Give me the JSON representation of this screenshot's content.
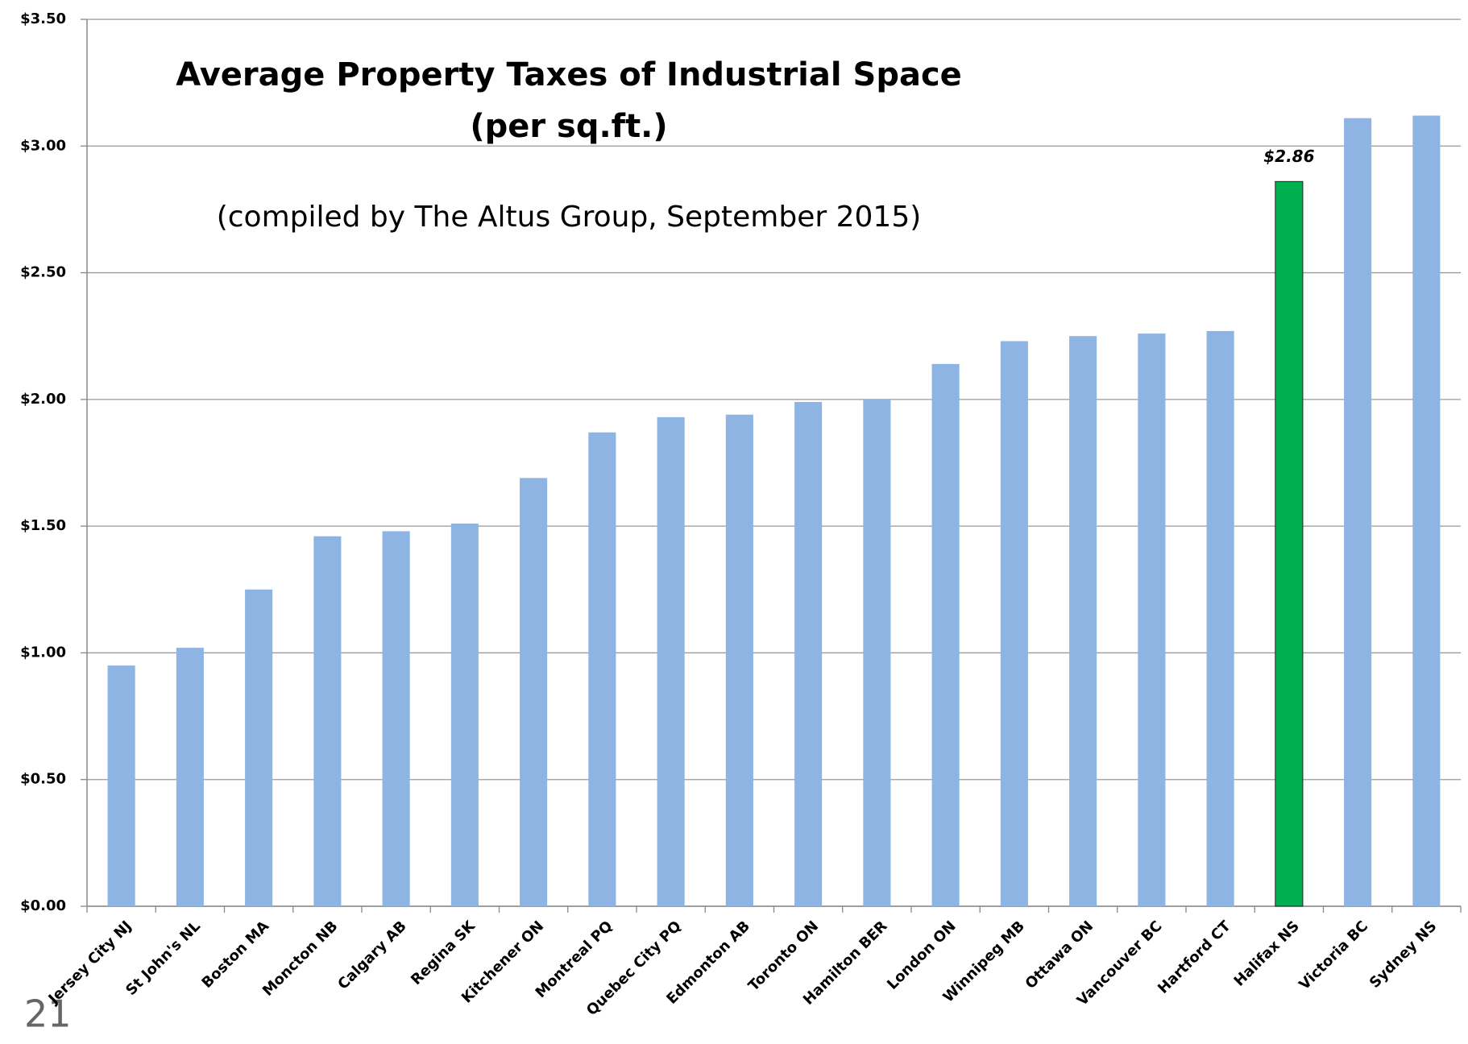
{
  "chart_data": {
    "type": "bar",
    "title": "Average Property Taxes of Industrial Space",
    "subtitle": "(per sq.ft.)",
    "annotation": "(compiled by The Altus Group, September 2015)",
    "categories": [
      "Jersey City NJ",
      "St John's NL",
      "Boston MA",
      "Moncton NB",
      "Calgary AB",
      "Regina SK",
      "Kitchener ON",
      "Montreal PQ",
      "Quebec City PQ",
      "Edmonton AB",
      "Toronto ON",
      "Hamilton BER",
      "London ON",
      "Winnipeg MB",
      "Ottawa ON",
      "Vancouver BC",
      "Hartford CT",
      "Halifax NS",
      "Victoria BC",
      "Sydney NS"
    ],
    "values": [
      0.95,
      1.02,
      1.25,
      1.46,
      1.48,
      1.51,
      1.69,
      1.87,
      1.93,
      1.94,
      1.99,
      2.0,
      2.14,
      2.23,
      2.25,
      2.26,
      2.27,
      2.86,
      3.11,
      3.12
    ],
    "value_labels": [
      null,
      null,
      null,
      null,
      null,
      null,
      null,
      null,
      null,
      null,
      null,
      null,
      null,
      null,
      null,
      null,
      null,
      "$2.86",
      null,
      null
    ],
    "colors": [
      "#8eb4e3",
      "#8eb4e3",
      "#8eb4e3",
      "#8eb4e3",
      "#8eb4e3",
      "#8eb4e3",
      "#8eb4e3",
      "#8eb4e3",
      "#8eb4e3",
      "#8eb4e3",
      "#8eb4e3",
      "#8eb4e3",
      "#8eb4e3",
      "#8eb4e3",
      "#8eb4e3",
      "#8eb4e3",
      "#8eb4e3",
      "#00b050",
      "#8eb4e3",
      "#8eb4e3"
    ],
    "ylim": [
      0,
      3.5
    ],
    "yticks": [
      {
        "value": 0,
        "label": "$0.00"
      },
      {
        "value": 0.5,
        "label": "$0.50"
      },
      {
        "value": 1,
        "label": "$1.00"
      },
      {
        "value": 1.5,
        "label": "$1.50"
      },
      {
        "value": 2,
        "label": "$2.00"
      },
      {
        "value": 2.5,
        "label": "$2.50"
      },
      {
        "value": 3,
        "label": "$3.00"
      },
      {
        "value": 3.5,
        "label": "$3.50"
      }
    ],
    "grid": true
  },
  "page_number": "21"
}
